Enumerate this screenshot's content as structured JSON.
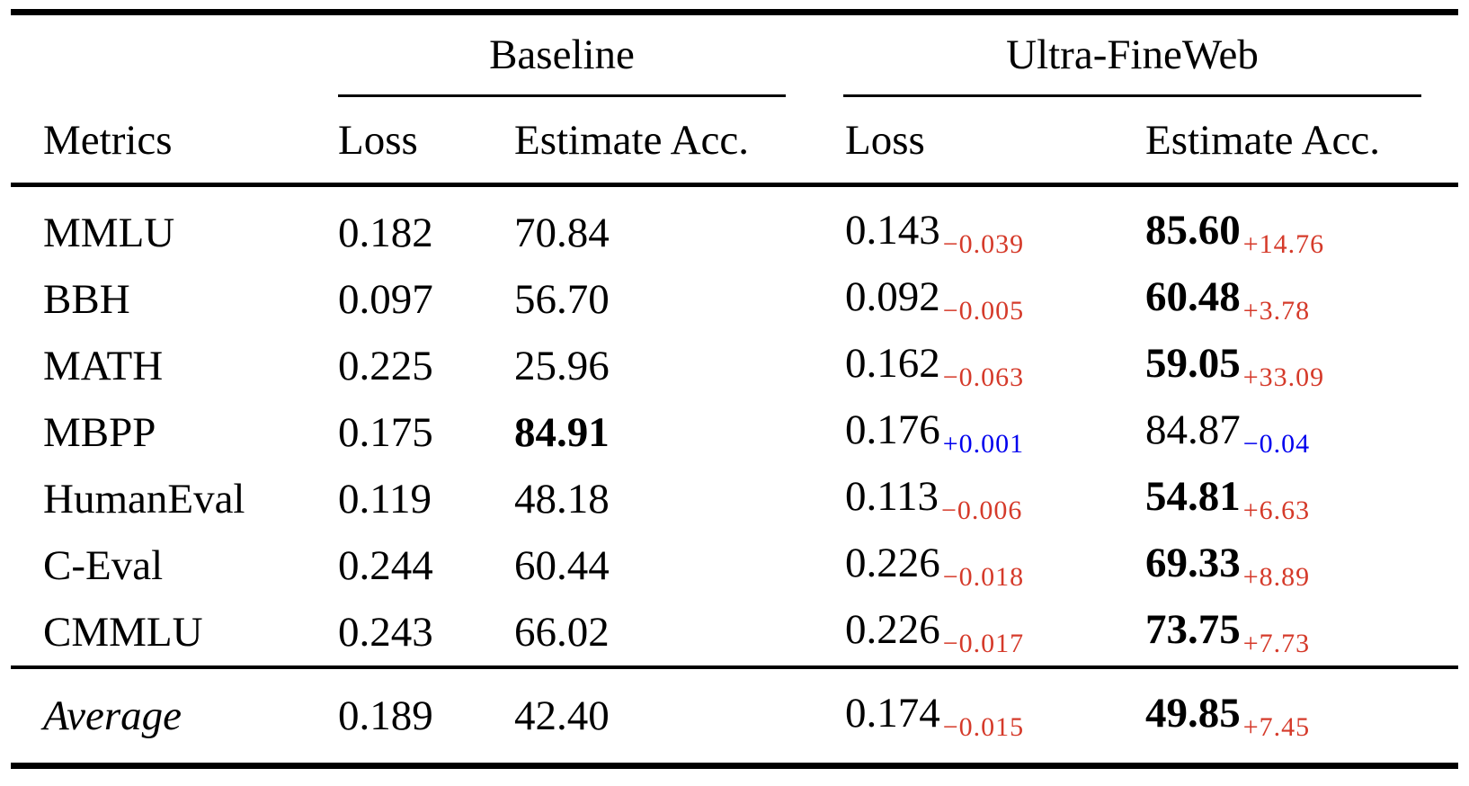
{
  "colors": {
    "improvement_red": "#d53a2a",
    "regression_blue": "#0000ee"
  },
  "table": {
    "header": {
      "metrics_label": "Metrics",
      "groups": [
        {
          "label": "Baseline",
          "col1": "Loss",
          "col2": "Estimate Acc."
        },
        {
          "label": "Ultra-FineWeb",
          "col1": "Loss",
          "col2": "Estimate Acc."
        }
      ]
    },
    "rows": [
      {
        "metric": "MMLU",
        "baseline_loss": "0.182",
        "baseline_acc": "70.84",
        "baseline_acc_bold": false,
        "ufw_loss": "0.143",
        "ufw_loss_delta": "−0.039",
        "ufw_loss_delta_color": "red",
        "ufw_acc": "85.60",
        "ufw_acc_bold": true,
        "ufw_acc_delta": "+14.76",
        "ufw_acc_delta_color": "red"
      },
      {
        "metric": "BBH",
        "baseline_loss": "0.097",
        "baseline_acc": "56.70",
        "baseline_acc_bold": false,
        "ufw_loss": "0.092",
        "ufw_loss_delta": "−0.005",
        "ufw_loss_delta_color": "red",
        "ufw_acc": "60.48",
        "ufw_acc_bold": true,
        "ufw_acc_delta": "+3.78",
        "ufw_acc_delta_color": "red"
      },
      {
        "metric": "MATH",
        "baseline_loss": "0.225",
        "baseline_acc": "25.96",
        "baseline_acc_bold": false,
        "ufw_loss": "0.162",
        "ufw_loss_delta": "−0.063",
        "ufw_loss_delta_color": "red",
        "ufw_acc": "59.05",
        "ufw_acc_bold": true,
        "ufw_acc_delta": "+33.09",
        "ufw_acc_delta_color": "red"
      },
      {
        "metric": "MBPP",
        "baseline_loss": "0.175",
        "baseline_acc": "84.91",
        "baseline_acc_bold": true,
        "ufw_loss": "0.176",
        "ufw_loss_delta": "+0.001",
        "ufw_loss_delta_color": "blue",
        "ufw_acc": "84.87",
        "ufw_acc_bold": false,
        "ufw_acc_delta": "−0.04",
        "ufw_acc_delta_color": "blue"
      },
      {
        "metric": "HumanEval",
        "baseline_loss": "0.119",
        "baseline_acc": "48.18",
        "baseline_acc_bold": false,
        "ufw_loss": "0.113",
        "ufw_loss_delta": "−0.006",
        "ufw_loss_delta_color": "red",
        "ufw_acc": "54.81",
        "ufw_acc_bold": true,
        "ufw_acc_delta": "+6.63",
        "ufw_acc_delta_color": "red"
      },
      {
        "metric": "C-Eval",
        "baseline_loss": "0.244",
        "baseline_acc": "60.44",
        "baseline_acc_bold": false,
        "ufw_loss": "0.226",
        "ufw_loss_delta": "−0.018",
        "ufw_loss_delta_color": "red",
        "ufw_acc": "69.33",
        "ufw_acc_bold": true,
        "ufw_acc_delta": "+8.89",
        "ufw_acc_delta_color": "red"
      },
      {
        "metric": "CMMLU",
        "baseline_loss": "0.243",
        "baseline_acc": "66.02",
        "baseline_acc_bold": false,
        "ufw_loss": "0.226",
        "ufw_loss_delta": "−0.017",
        "ufw_loss_delta_color": "red",
        "ufw_acc": "73.75",
        "ufw_acc_bold": true,
        "ufw_acc_delta": "+7.73",
        "ufw_acc_delta_color": "red"
      }
    ],
    "average": {
      "metric": "Average",
      "metric_italic": true,
      "baseline_loss": "0.189",
      "baseline_acc": "42.40",
      "baseline_acc_bold": false,
      "ufw_loss": "0.174",
      "ufw_loss_delta": "−0.015",
      "ufw_loss_delta_color": "red",
      "ufw_acc": "49.85",
      "ufw_acc_bold": true,
      "ufw_acc_delta": "+7.45",
      "ufw_acc_delta_color": "red"
    }
  }
}
